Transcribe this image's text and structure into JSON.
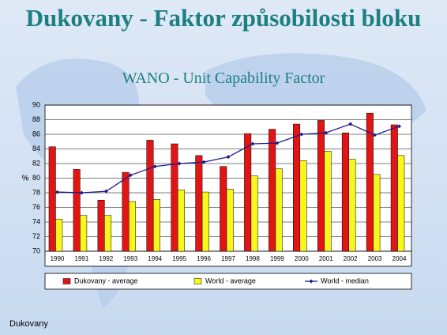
{
  "chart_data": {
    "type": "bar-line",
    "title": "Dukovany - Faktor způsobilosti bloku",
    "subtitle": "WANO - Unit Capability Factor",
    "y_label": "%",
    "footer": "Dukovany",
    "categories": [
      "1990",
      "1991",
      "1992",
      "1993",
      "1994",
      "1995",
      "1996",
      "1997",
      "1998",
      "1999",
      "2000",
      "2001",
      "2002",
      "2003",
      "2004"
    ],
    "series": [
      {
        "name": "Dukovany - average",
        "type": "bar",
        "color": "#e31414",
        "values": [
          84.3,
          81.2,
          77.0,
          80.8,
          85.2,
          84.7,
          83.1,
          81.6,
          86.1,
          86.7,
          87.4,
          87.9,
          86.2,
          88.9,
          87.3
        ]
      },
      {
        "name": "World - average",
        "type": "bar",
        "color": "#f7f71e",
        "values": [
          74.4,
          74.9,
          74.9,
          76.8,
          77.1,
          78.4,
          78.1,
          78.5,
          80.3,
          81.3,
          82.4,
          83.7,
          82.6,
          80.5,
          83.1
        ]
      },
      {
        "name": "World - median",
        "type": "line",
        "color": "#1a1a8c",
        "values": [
          78.1,
          78.0,
          78.2,
          80.4,
          81.6,
          82.0,
          82.2,
          82.9,
          84.7,
          84.8,
          86.0,
          86.2,
          87.4,
          85.9,
          87.1
        ]
      }
    ],
    "ylim": [
      70,
      90
    ],
    "yticks": [
      70,
      72,
      74,
      76,
      78,
      80,
      82,
      84,
      86,
      88,
      90
    ],
    "grid": true
  }
}
